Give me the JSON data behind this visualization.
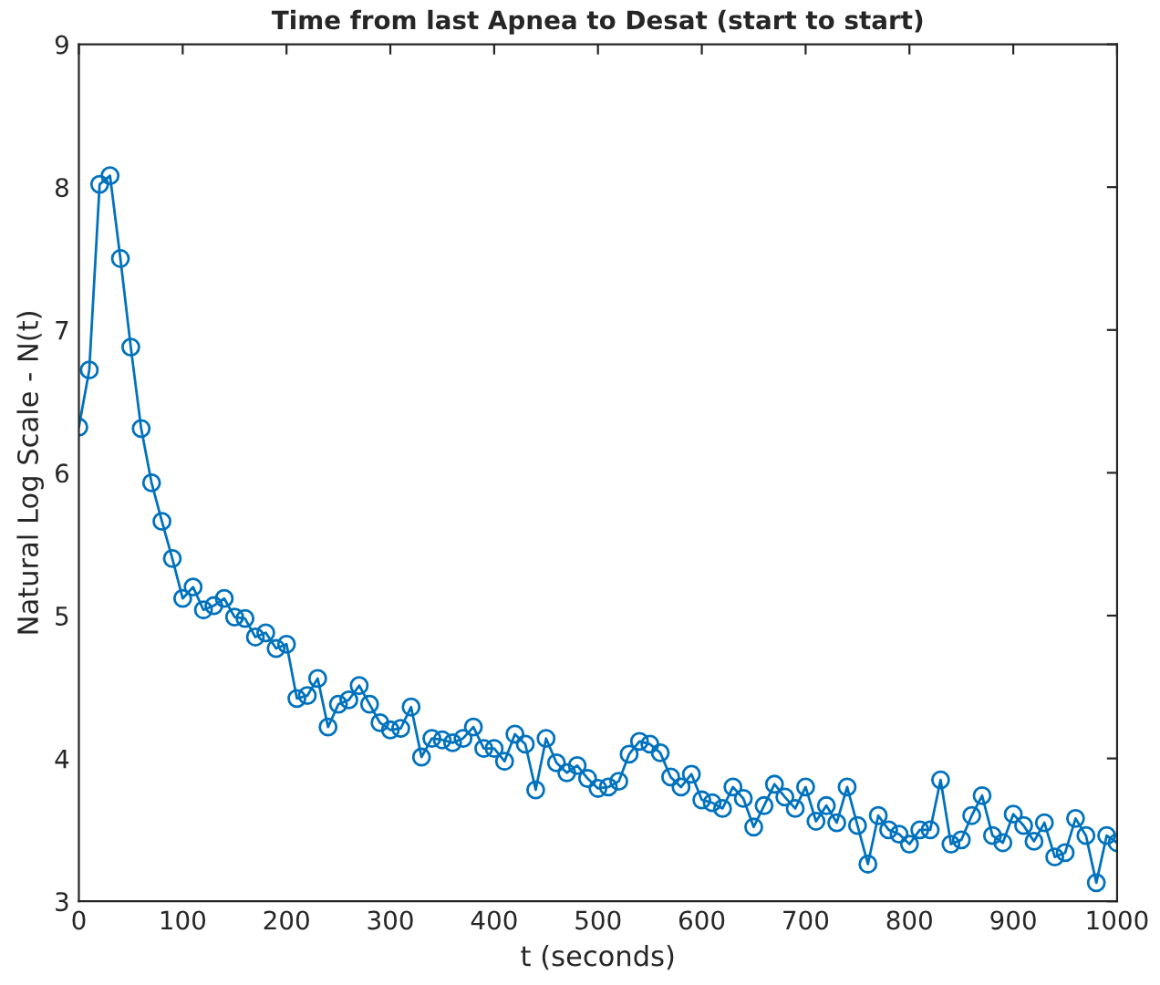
{
  "chart_data": {
    "type": "line",
    "title": "Time from last Apnea to Desat (start to start)",
    "xlabel": "t (seconds)",
    "ylabel": "Natural Log Scale - N(t)",
    "x": [
      0,
      10,
      20,
      30,
      40,
      50,
      60,
      70,
      80,
      90,
      100,
      110,
      120,
      130,
      140,
      150,
      160,
      170,
      180,
      190,
      200,
      210,
      220,
      230,
      240,
      250,
      260,
      270,
      280,
      290,
      300,
      310,
      320,
      330,
      340,
      350,
      360,
      370,
      380,
      390,
      400,
      410,
      420,
      430,
      440,
      450,
      460,
      470,
      480,
      490,
      500,
      510,
      520,
      530,
      540,
      550,
      560,
      570,
      580,
      590,
      600,
      610,
      620,
      630,
      640,
      650,
      660,
      670,
      680,
      690,
      700,
      710,
      720,
      730,
      740,
      750,
      760,
      770,
      780,
      790,
      800,
      810,
      820,
      830,
      840,
      850,
      860,
      870,
      880,
      890,
      900,
      910,
      920,
      930,
      940,
      950,
      960,
      970,
      980,
      990,
      1000
    ],
    "series": [
      {
        "color": "#0072bd",
        "values": [
          6.32,
          6.72,
          8.02,
          8.08,
          7.5,
          6.88,
          6.31,
          5.93,
          5.66,
          5.4,
          5.12,
          5.2,
          5.04,
          5.07,
          5.12,
          4.99,
          4.98,
          4.85,
          4.88,
          4.77,
          4.8,
          4.42,
          4.44,
          4.56,
          4.22,
          4.38,
          4.41,
          4.51,
          4.38,
          4.25,
          4.2,
          4.21,
          4.36,
          4.01,
          4.14,
          4.13,
          4.11,
          4.14,
          4.22,
          4.07,
          4.07,
          3.98,
          4.17,
          4.1,
          3.78,
          4.14,
          3.97,
          3.9,
          3.95,
          3.86,
          3.79,
          3.8,
          3.84,
          4.03,
          4.12,
          4.1,
          4.04,
          3.87,
          3.8,
          3.89,
          3.71,
          3.69,
          3.65,
          3.8,
          3.72,
          3.52,
          3.67,
          3.82,
          3.73,
          3.65,
          3.8,
          3.56,
          3.67,
          3.55,
          3.8,
          3.53,
          3.26,
          3.6,
          3.5,
          3.47,
          3.4,
          3.5,
          3.5,
          3.85,
          3.4,
          3.43,
          3.6,
          3.74,
          3.46,
          3.41,
          3.61,
          3.53,
          3.42,
          3.55,
          3.31,
          3.34,
          3.58,
          3.46,
          3.13,
          3.46,
          3.41
        ]
      }
    ],
    "xlim": [
      0,
      1000
    ],
    "ylim": [
      3,
      9
    ],
    "xticks": [
      0,
      100,
      200,
      300,
      400,
      500,
      600,
      700,
      800,
      900,
      1000
    ],
    "yticks": [
      3,
      4,
      5,
      6,
      7,
      8,
      9
    ],
    "marker": "circle",
    "line_style": "solid",
    "grid": false
  }
}
